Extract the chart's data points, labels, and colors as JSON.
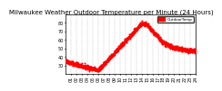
{
  "title": "Milwaukee Weather Outdoor Temperature per Minute (24 Hours)",
  "bg_color": "#ffffff",
  "line_color": "#ff0000",
  "dot_size": 2,
  "ylim": [
    20,
    90
  ],
  "xlim": [
    0,
    1440
  ],
  "yticks": [
    30,
    40,
    50,
    60,
    70,
    80
  ],
  "xtick_labels": [
    "01",
    "02",
    "03",
    "04",
    "05",
    "06",
    "07",
    "08",
    "09",
    "10",
    "11",
    "12",
    "13",
    "14",
    "15",
    "16",
    "17",
    "18",
    "19",
    "20",
    "21",
    "22",
    "23",
    "24"
  ],
  "legend_label": "OutdoorTemp",
  "title_fontsize": 5,
  "tick_fontsize": 3.5
}
